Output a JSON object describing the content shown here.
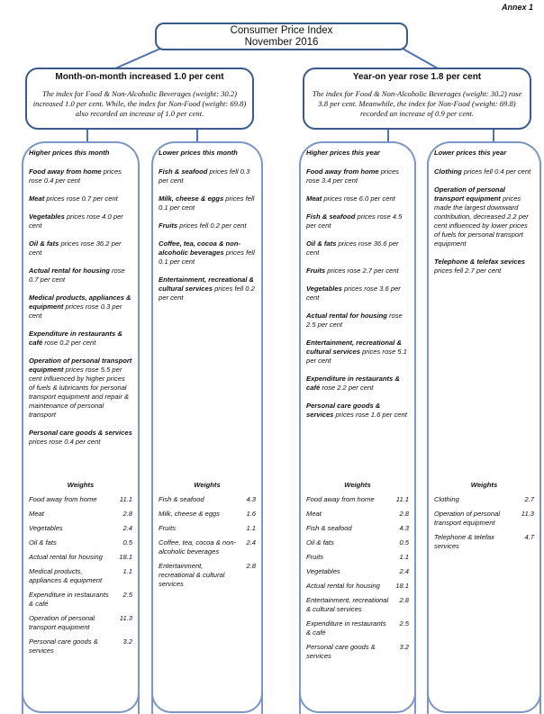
{
  "annex": "Annex 1",
  "title": {
    "line1": "Consumer Price Index",
    "line2": "November 2016"
  },
  "mom": {
    "heading": "Month-on-month increased 1.0 per cent",
    "text": "The index for Food & Non-Alcoholic Beverages (weight: 30.2) increased 1.0 per cent. While, the index for Non-Food (weight: 69.8) also recorded an increase of 1.0 per cent."
  },
  "yoy": {
    "heading": "Year-on year rose 1.8 per cent",
    "text": "The index for Food & Non-Alcoholic Beverages (weight: 30.2) rose 3.8 per cent. Meanwhile, the index for Non-Food (weight: 69.8) recorded an increase of 0.9 per cent."
  },
  "columns": [
    {
      "heading": "Higher prices this month",
      "entries": [
        {
          "item": "Food away from home",
          "text": " prices rose 0.4 per cent"
        },
        {
          "item": "Meat",
          "text": " prices rose 0.7 per cent"
        },
        {
          "item": "Vegetables",
          "text": " prices rose 4.0 per cent"
        },
        {
          "item": "Oil & fats",
          "text": " prices rose 36.2 per cent"
        },
        {
          "item": "Actual rental for housing",
          "text": " rose 0.7 per cent"
        },
        {
          "item": "Medical products, appliances & equipment",
          "text": " prices rose 0.3 per cent"
        },
        {
          "item": "Expenditure in restaurants & café",
          "text": " rose 0.2 per cent"
        },
        {
          "item": "Operation of personal transport equipment",
          "text": " prices rose 5.5 per cent influenced by higher prices of fuels & lubricants for personal transport equipment and repair & maintenance of personal transport"
        },
        {
          "item": "Personal care goods & services",
          "text": " prices rose 0.4 per cent"
        }
      ],
      "weights_title": "Weights",
      "weights": [
        {
          "item": "Food away from home",
          "value": "11.1"
        },
        {
          "item": "Meat",
          "value": "2.8"
        },
        {
          "item": "Vegetables",
          "value": "2.4"
        },
        {
          "item": "Oil & fats",
          "value": "0.5"
        },
        {
          "item": "Actual rental for housing",
          "value": "18.1"
        },
        {
          "item": "Medical products, appliances & equipment",
          "value": "1.1"
        },
        {
          "item": "Expenditure in restaurants & café",
          "value": "2.5"
        },
        {
          "item": "Operation of personal transport equipment",
          "value": "11.3"
        },
        {
          "item": "Personal care goods & services",
          "value": "3.2"
        }
      ]
    },
    {
      "heading": "Lower prices this month",
      "entries": [
        {
          "item": "Fish & seafood",
          "text": " prices fell 0.3 per cent"
        },
        {
          "item": "Milk, cheese & eggs",
          "text": " prices fell 0.1 per cent"
        },
        {
          "item": "Fruits",
          "text": " prices fell 0.2 per cent"
        },
        {
          "item": "Coffee, tea, cocoa & non-alcoholic beverages",
          "text": " prices fell 0.1 per cent"
        },
        {
          "item": "Entertainment, recreational & cultural services",
          "text": " prices fell 0.2 per cent"
        }
      ],
      "weights_title": "Weights",
      "weights": [
        {
          "item": "Fish & seafood",
          "value": "4.3"
        },
        {
          "item": "Milk, cheese & eggs",
          "value": "1.6"
        },
        {
          "item": "Fruits",
          "value": "1.1"
        },
        {
          "item": "Coffee, tea, cocoa & non-alcoholic beverages",
          "value": "2.4"
        },
        {
          "item": "Entertainment, recreational & cultural services",
          "value": "2.8"
        }
      ]
    },
    {
      "heading": "Higher prices this year",
      "entries": [
        {
          "item": "Food away from home",
          "text": " prices rose 3.4 per cent"
        },
        {
          "item": "Meat",
          "text": " prices rose 6.0 per cent"
        },
        {
          "item": "Fish & seafood",
          "text": " prices rose 4.5 per cent"
        },
        {
          "item": "Oil & fats",
          "text": " prices rose 36.6 per cent"
        },
        {
          "item": "Fruits",
          "text": " prices rose 2.7 per cent"
        },
        {
          "item": "Vegetables",
          "text": " prices rose 3.6 per cent"
        },
        {
          "item": "Actual rental for housing",
          "text": " rose 2.5 per cent"
        },
        {
          "item": "Entertainment, recreational & cultural services",
          "text": " prices rose 5.1 per cent"
        },
        {
          "item": "Expenditure in restaurants & café",
          "text": " rose 2.2 per cent"
        },
        {
          "item": "Personal care goods & services",
          "text": " prices rose 1.6 per cent"
        }
      ],
      "weights_title": "Weights",
      "weights": [
        {
          "item": "Food away from home",
          "value": "11.1"
        },
        {
          "item": "Meat",
          "value": "2.8"
        },
        {
          "item": "Fish & seafood",
          "value": "4.3"
        },
        {
          "item": "Oil & fats",
          "value": "0.5"
        },
        {
          "item": "Fruits",
          "value": "1.1"
        },
        {
          "item": "Vegetables",
          "value": "2.4"
        },
        {
          "item": "Actual rental for housing",
          "value": "18.1"
        },
        {
          "item": "Entertainment, recreational & cultural services",
          "value": "2.8"
        },
        {
          "item": "Expenditure in restaurants & café",
          "value": "2.5"
        },
        {
          "item": "Personal care goods & services",
          "value": "3.2"
        }
      ]
    },
    {
      "heading": "Lower prices this year",
      "entries": [
        {
          "item": "Clothing",
          "text": " prices fell 0.4 per cent"
        },
        {
          "item": "Operation of personal transport equipment",
          "text": " prices made the largest downward contribution, decreased 2.2 per cent influenced by lower prices of fuels for personal transport equipment"
        },
        {
          "item": "Telephone & telefax sevices",
          "text": " prices fell 2.7 per cent"
        }
      ],
      "weights_title": "Weights",
      "weights": [
        {
          "item": "Clothing",
          "value": "2.7"
        },
        {
          "item": "Operation of personal transport equipment",
          "value": "11.3"
        },
        {
          "item": "Telephone & telefax services",
          "value": "4.7"
        }
      ]
    }
  ]
}
